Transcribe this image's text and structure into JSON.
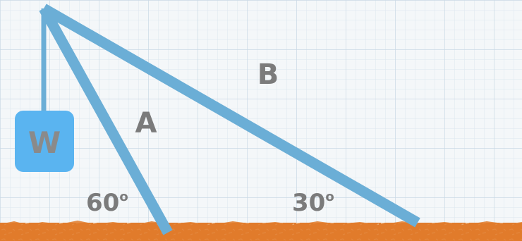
{
  "diagram": {
    "weight_label": "W",
    "member_a_label": "A",
    "member_b_label": "B",
    "angle_a": "60",
    "angle_b": "30",
    "degree_symbol": "o"
  },
  "colors": {
    "strut": "#6baed6",
    "weight_box": "#5ab4f0",
    "ground": "#e07b2c",
    "grid_minor": "#dbe6ee",
    "grid_major": "#c7d7e3",
    "label": "#7b7b7b"
  }
}
